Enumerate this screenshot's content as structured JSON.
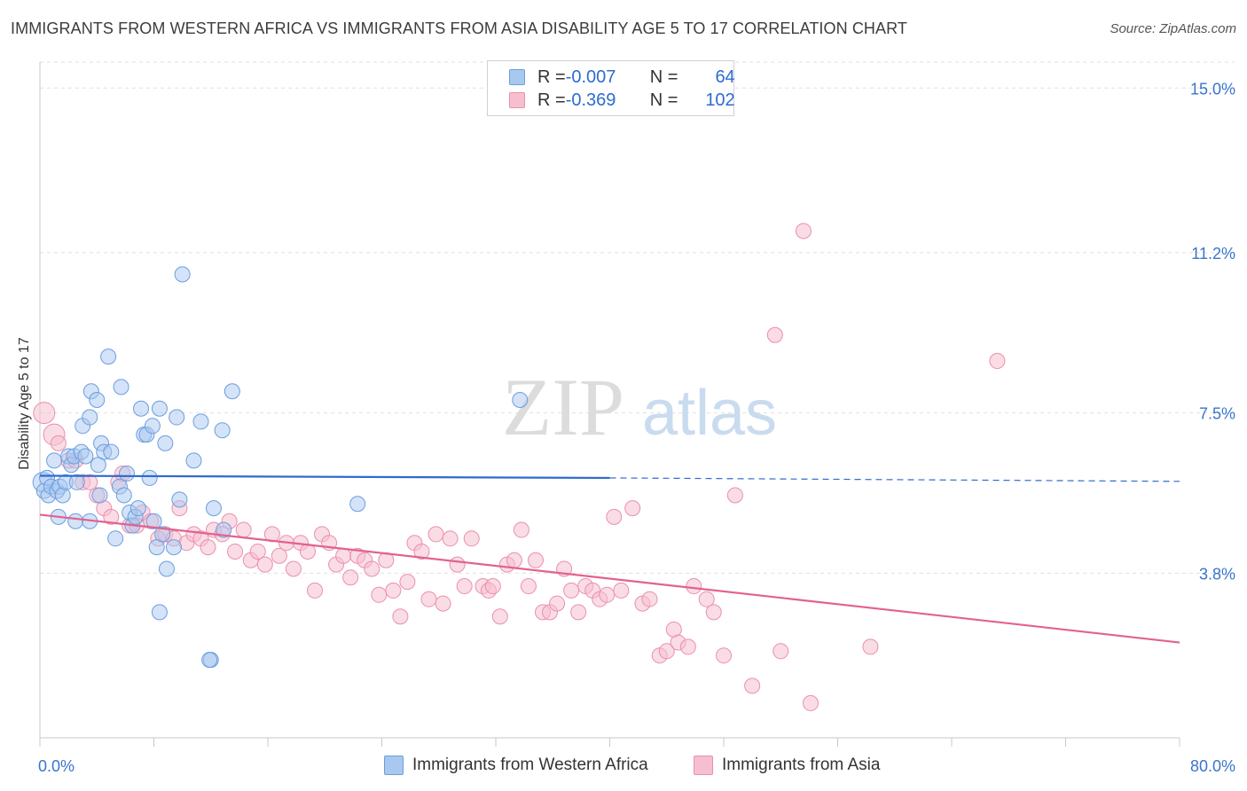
{
  "title": "IMMIGRANTS FROM WESTERN AFRICA VS IMMIGRANTS FROM ASIA DISABILITY AGE 5 TO 17 CORRELATION CHART",
  "source": "Source: ZipAtlas.com",
  "watermark": {
    "zip": "ZIP",
    "atlas": "atlas"
  },
  "legend": {
    "rows": [
      {
        "r_label": "R = ",
        "r_value": "-0.007",
        "n_label": "N = ",
        "n_value": "64"
      },
      {
        "r_label": "R = ",
        "r_value": "-0.369",
        "n_label": "N = ",
        "n_value": "102"
      }
    ]
  },
  "colors": {
    "blue_fill": "#a9c8f0",
    "blue_stroke": "#6a9ee0",
    "blue_line": "#2e6bcf",
    "pink_fill": "#f6bfd0",
    "pink_stroke": "#ea8fae",
    "pink_line": "#e2628e",
    "tick_text": "#3a74cc",
    "grid": "#e0e0e0"
  },
  "chart_data": {
    "type": "scatter",
    "title": "IMMIGRANTS FROM WESTERN AFRICA VS IMMIGRANTS FROM ASIA DISABILITY AGE 5 TO 17 CORRELATION CHART",
    "xlabel": "",
    "ylabel": "Disability Age 5 to 17",
    "xlim": [
      0,
      80
    ],
    "ylim": [
      0,
      15.6
    ],
    "x_tick_labels": [
      "0.0%",
      "80.0%"
    ],
    "y_ticks": [
      3.8,
      7.5,
      11.2,
      15.0
    ],
    "y_tick_labels": [
      "3.8%",
      "7.5%",
      "11.2%",
      "15.0%"
    ],
    "grid": true,
    "legend_position": "top-center",
    "series": [
      {
        "name": "Immigrants from Western Africa",
        "r": -0.007,
        "n": 64,
        "trend": {
          "x0": 0,
          "y0": 6.05,
          "x1": 40,
          "y1": 6.0,
          "dash_to_x": 80,
          "dash_to_y": 5.92
        },
        "points": [
          [
            0.2,
            5.9
          ],
          [
            0.3,
            5.7
          ],
          [
            0.5,
            6.0
          ],
          [
            0.6,
            5.6
          ],
          [
            0.8,
            5.8
          ],
          [
            1.0,
            6.4
          ],
          [
            1.2,
            5.7
          ],
          [
            1.3,
            5.1
          ],
          [
            1.4,
            5.8
          ],
          [
            1.6,
            5.6
          ],
          [
            1.8,
            5.9
          ],
          [
            2.0,
            6.5
          ],
          [
            2.2,
            6.3
          ],
          [
            2.4,
            6.5
          ],
          [
            2.6,
            5.9
          ],
          [
            2.5,
            5.0
          ],
          [
            2.9,
            6.6
          ],
          [
            3.0,
            7.2
          ],
          [
            3.2,
            6.5
          ],
          [
            3.5,
            7.4
          ],
          [
            3.6,
            8.0
          ],
          [
            3.5,
            5.0
          ],
          [
            4.0,
            7.8
          ],
          [
            4.1,
            6.3
          ],
          [
            4.3,
            6.8
          ],
          [
            4.5,
            6.6
          ],
          [
            4.2,
            5.6
          ],
          [
            4.8,
            8.8
          ],
          [
            5.0,
            6.6
          ],
          [
            5.3,
            4.6
          ],
          [
            5.6,
            5.8
          ],
          [
            5.7,
            8.1
          ],
          [
            5.9,
            5.6
          ],
          [
            6.1,
            6.1
          ],
          [
            6.3,
            5.2
          ],
          [
            6.5,
            4.9
          ],
          [
            6.7,
            5.1
          ],
          [
            6.9,
            5.3
          ],
          [
            7.1,
            7.6
          ],
          [
            7.3,
            7.0
          ],
          [
            7.5,
            7.0
          ],
          [
            7.7,
            6.0
          ],
          [
            7.9,
            7.2
          ],
          [
            8.0,
            5.0
          ],
          [
            8.2,
            4.4
          ],
          [
            8.4,
            7.6
          ],
          [
            8.6,
            4.7
          ],
          [
            8.8,
            6.8
          ],
          [
            8.9,
            3.9
          ],
          [
            8.4,
            2.9
          ],
          [
            9.4,
            4.4
          ],
          [
            9.6,
            7.4
          ],
          [
            9.8,
            5.5
          ],
          [
            10.0,
            10.7
          ],
          [
            10.8,
            6.4
          ],
          [
            11.3,
            7.3
          ],
          [
            12.0,
            1.8
          ],
          [
            11.9,
            1.8
          ],
          [
            12.2,
            5.3
          ],
          [
            12.9,
            4.8
          ],
          [
            12.8,
            7.1
          ],
          [
            13.5,
            8.0
          ],
          [
            22.3,
            5.4
          ],
          [
            33.7,
            7.8
          ]
        ]
      },
      {
        "name": "Immigrants from Asia",
        "r": -0.369,
        "n": 102,
        "trend": {
          "x0": 0,
          "y0": 5.15,
          "x1": 80,
          "y1": 2.2
        },
        "points": [
          [
            0.3,
            7.5
          ],
          [
            1.0,
            7.0
          ],
          [
            1.3,
            6.8
          ],
          [
            2.0,
            6.4
          ],
          [
            2.5,
            6.4
          ],
          [
            3.0,
            5.9
          ],
          [
            3.5,
            5.9
          ],
          [
            4.0,
            5.6
          ],
          [
            4.5,
            5.3
          ],
          [
            5.0,
            5.1
          ],
          [
            5.5,
            5.9
          ],
          [
            5.8,
            6.1
          ],
          [
            6.3,
            4.9
          ],
          [
            6.8,
            4.9
          ],
          [
            7.2,
            5.2
          ],
          [
            7.8,
            5.0
          ],
          [
            8.3,
            4.6
          ],
          [
            8.8,
            4.7
          ],
          [
            9.4,
            4.6
          ],
          [
            9.8,
            5.3
          ],
          [
            10.3,
            4.5
          ],
          [
            10.8,
            4.7
          ],
          [
            11.3,
            4.6
          ],
          [
            11.8,
            4.4
          ],
          [
            12.2,
            4.8
          ],
          [
            12.8,
            4.7
          ],
          [
            13.3,
            5.0
          ],
          [
            13.7,
            4.3
          ],
          [
            14.3,
            4.8
          ],
          [
            14.8,
            4.1
          ],
          [
            15.3,
            4.3
          ],
          [
            15.8,
            4.0
          ],
          [
            16.3,
            4.7
          ],
          [
            16.8,
            4.2
          ],
          [
            17.3,
            4.5
          ],
          [
            17.8,
            3.9
          ],
          [
            18.3,
            4.5
          ],
          [
            18.8,
            4.3
          ],
          [
            19.3,
            3.4
          ],
          [
            19.8,
            4.7
          ],
          [
            20.3,
            4.5
          ],
          [
            20.8,
            4.0
          ],
          [
            21.3,
            4.2
          ],
          [
            21.8,
            3.7
          ],
          [
            22.3,
            4.2
          ],
          [
            22.8,
            4.1
          ],
          [
            23.3,
            3.9
          ],
          [
            23.8,
            3.3
          ],
          [
            24.3,
            4.1
          ],
          [
            24.8,
            3.4
          ],
          [
            25.3,
            2.8
          ],
          [
            25.8,
            3.6
          ],
          [
            26.3,
            4.5
          ],
          [
            26.8,
            4.3
          ],
          [
            27.3,
            3.2
          ],
          [
            27.8,
            4.7
          ],
          [
            28.3,
            3.1
          ],
          [
            28.8,
            4.6
          ],
          [
            29.3,
            4.0
          ],
          [
            29.8,
            3.5
          ],
          [
            30.3,
            4.6
          ],
          [
            31.1,
            3.5
          ],
          [
            31.5,
            3.4
          ],
          [
            31.8,
            3.5
          ],
          [
            32.3,
            2.8
          ],
          [
            32.8,
            4.0
          ],
          [
            33.3,
            4.1
          ],
          [
            33.8,
            4.8
          ],
          [
            34.3,
            3.5
          ],
          [
            34.8,
            4.1
          ],
          [
            35.3,
            2.9
          ],
          [
            35.8,
            2.9
          ],
          [
            36.3,
            3.1
          ],
          [
            36.8,
            3.9
          ],
          [
            37.3,
            3.4
          ],
          [
            37.8,
            2.9
          ],
          [
            38.3,
            3.5
          ],
          [
            38.8,
            3.4
          ],
          [
            39.3,
            3.2
          ],
          [
            39.8,
            3.3
          ],
          [
            40.3,
            5.1
          ],
          [
            40.8,
            3.4
          ],
          [
            41.6,
            5.3
          ],
          [
            42.3,
            3.1
          ],
          [
            42.8,
            3.2
          ],
          [
            43.5,
            1.9
          ],
          [
            44.0,
            2.0
          ],
          [
            44.5,
            2.5
          ],
          [
            44.8,
            2.2
          ],
          [
            45.5,
            2.1
          ],
          [
            45.9,
            3.5
          ],
          [
            46.8,
            3.2
          ],
          [
            47.3,
            2.9
          ],
          [
            48.0,
            1.9
          ],
          [
            48.8,
            5.6
          ],
          [
            50.0,
            1.2
          ],
          [
            51.6,
            9.3
          ],
          [
            52.0,
            2.0
          ],
          [
            53.6,
            11.7
          ],
          [
            54.1,
            0.8
          ],
          [
            58.3,
            2.1
          ],
          [
            67.2,
            8.7
          ]
        ]
      }
    ]
  },
  "bottom_legend": [
    "Immigrants from Western Africa",
    "Immigrants from Asia"
  ]
}
